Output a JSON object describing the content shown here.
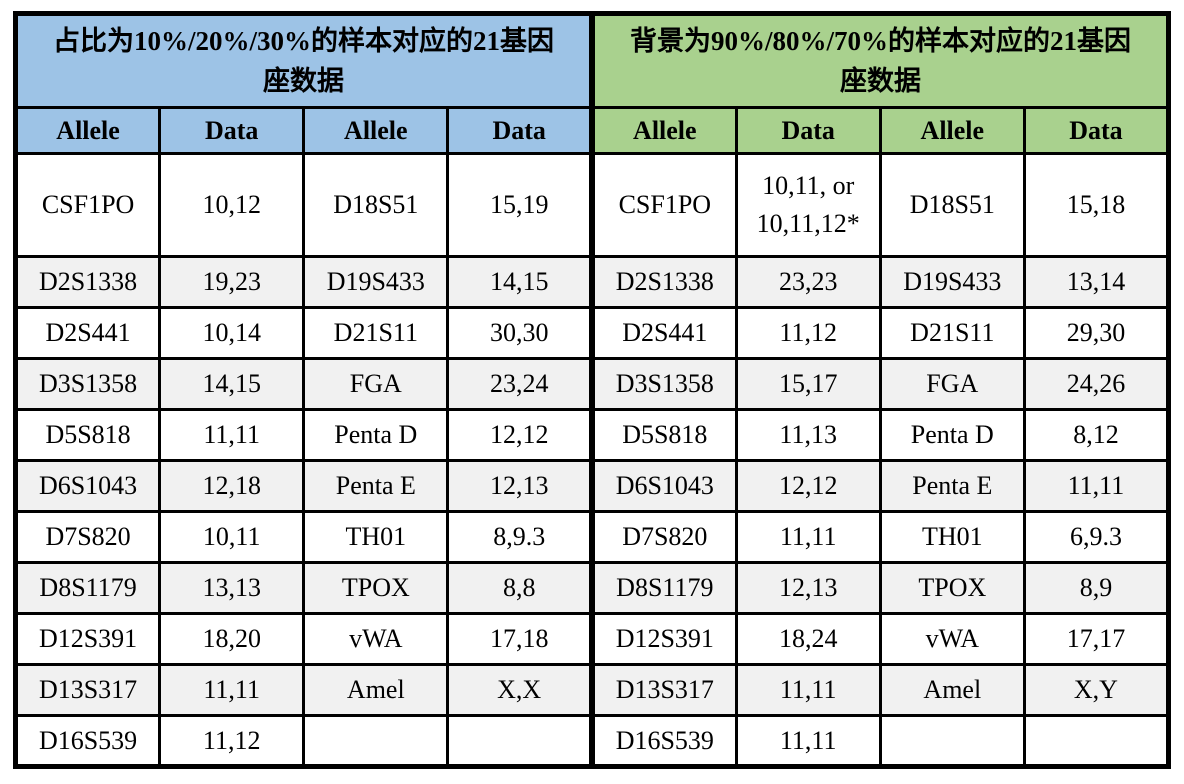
{
  "table": {
    "left_title": "占比为10%/20%/30%的样本对应的21基因座数据",
    "right_title": "背景为90%/80%/70%的样本对应的21基因座数据",
    "columns": [
      "Allele",
      "Data",
      "Allele",
      "Data",
      "Allele",
      "Data",
      "Allele",
      "Data"
    ],
    "rows": [
      [
        "CSF1PO",
        "10,12",
        "D18S51",
        "15,19",
        "CSF1PO",
        "10,11, or\n10,11,12*",
        "D18S51",
        "15,18"
      ],
      [
        "D2S1338",
        "19,23",
        "D19S433",
        "14,15",
        "D2S1338",
        "23,23",
        "D19S433",
        "13,14"
      ],
      [
        "D2S441",
        "10,14",
        "D21S11",
        "30,30",
        "D2S441",
        "11,12",
        "D21S11",
        "29,30"
      ],
      [
        "D3S1358",
        "14,15",
        "FGA",
        "23,24",
        "D3S1358",
        "15,17",
        "FGA",
        "24,26"
      ],
      [
        "D5S818",
        "11,11",
        "Penta D",
        "12,12",
        "D5S818",
        "11,13",
        "Penta D",
        "8,12"
      ],
      [
        "D6S1043",
        "12,18",
        "Penta E",
        "12,13",
        "D6S1043",
        "12,12",
        "Penta E",
        "11,11"
      ],
      [
        "D7S820",
        "10,11",
        "TH01",
        "8,9.3",
        "D7S820",
        "11,11",
        "TH01",
        "6,9.3"
      ],
      [
        "D8S1179",
        "13,13",
        "TPOX",
        "8,8",
        "D8S1179",
        "12,13",
        "TPOX",
        "8,9"
      ],
      [
        "D12S391",
        "18,20",
        "vWA",
        "17,18",
        "D12S391",
        "18,24",
        "vWA",
        "17,17"
      ],
      [
        "D13S317",
        "11,11",
        "Amel",
        "X,X",
        "D13S317",
        "11,11",
        "Amel",
        "X,Y"
      ],
      [
        "D16S539",
        "11,12",
        "",
        "",
        "D16S539",
        "11,11",
        "",
        ""
      ]
    ]
  },
  "colors": {
    "left_header": "#9DC3E6",
    "right_header": "#A9D18E",
    "alt_row": "#F1F1F1",
    "border": "#000000"
  }
}
